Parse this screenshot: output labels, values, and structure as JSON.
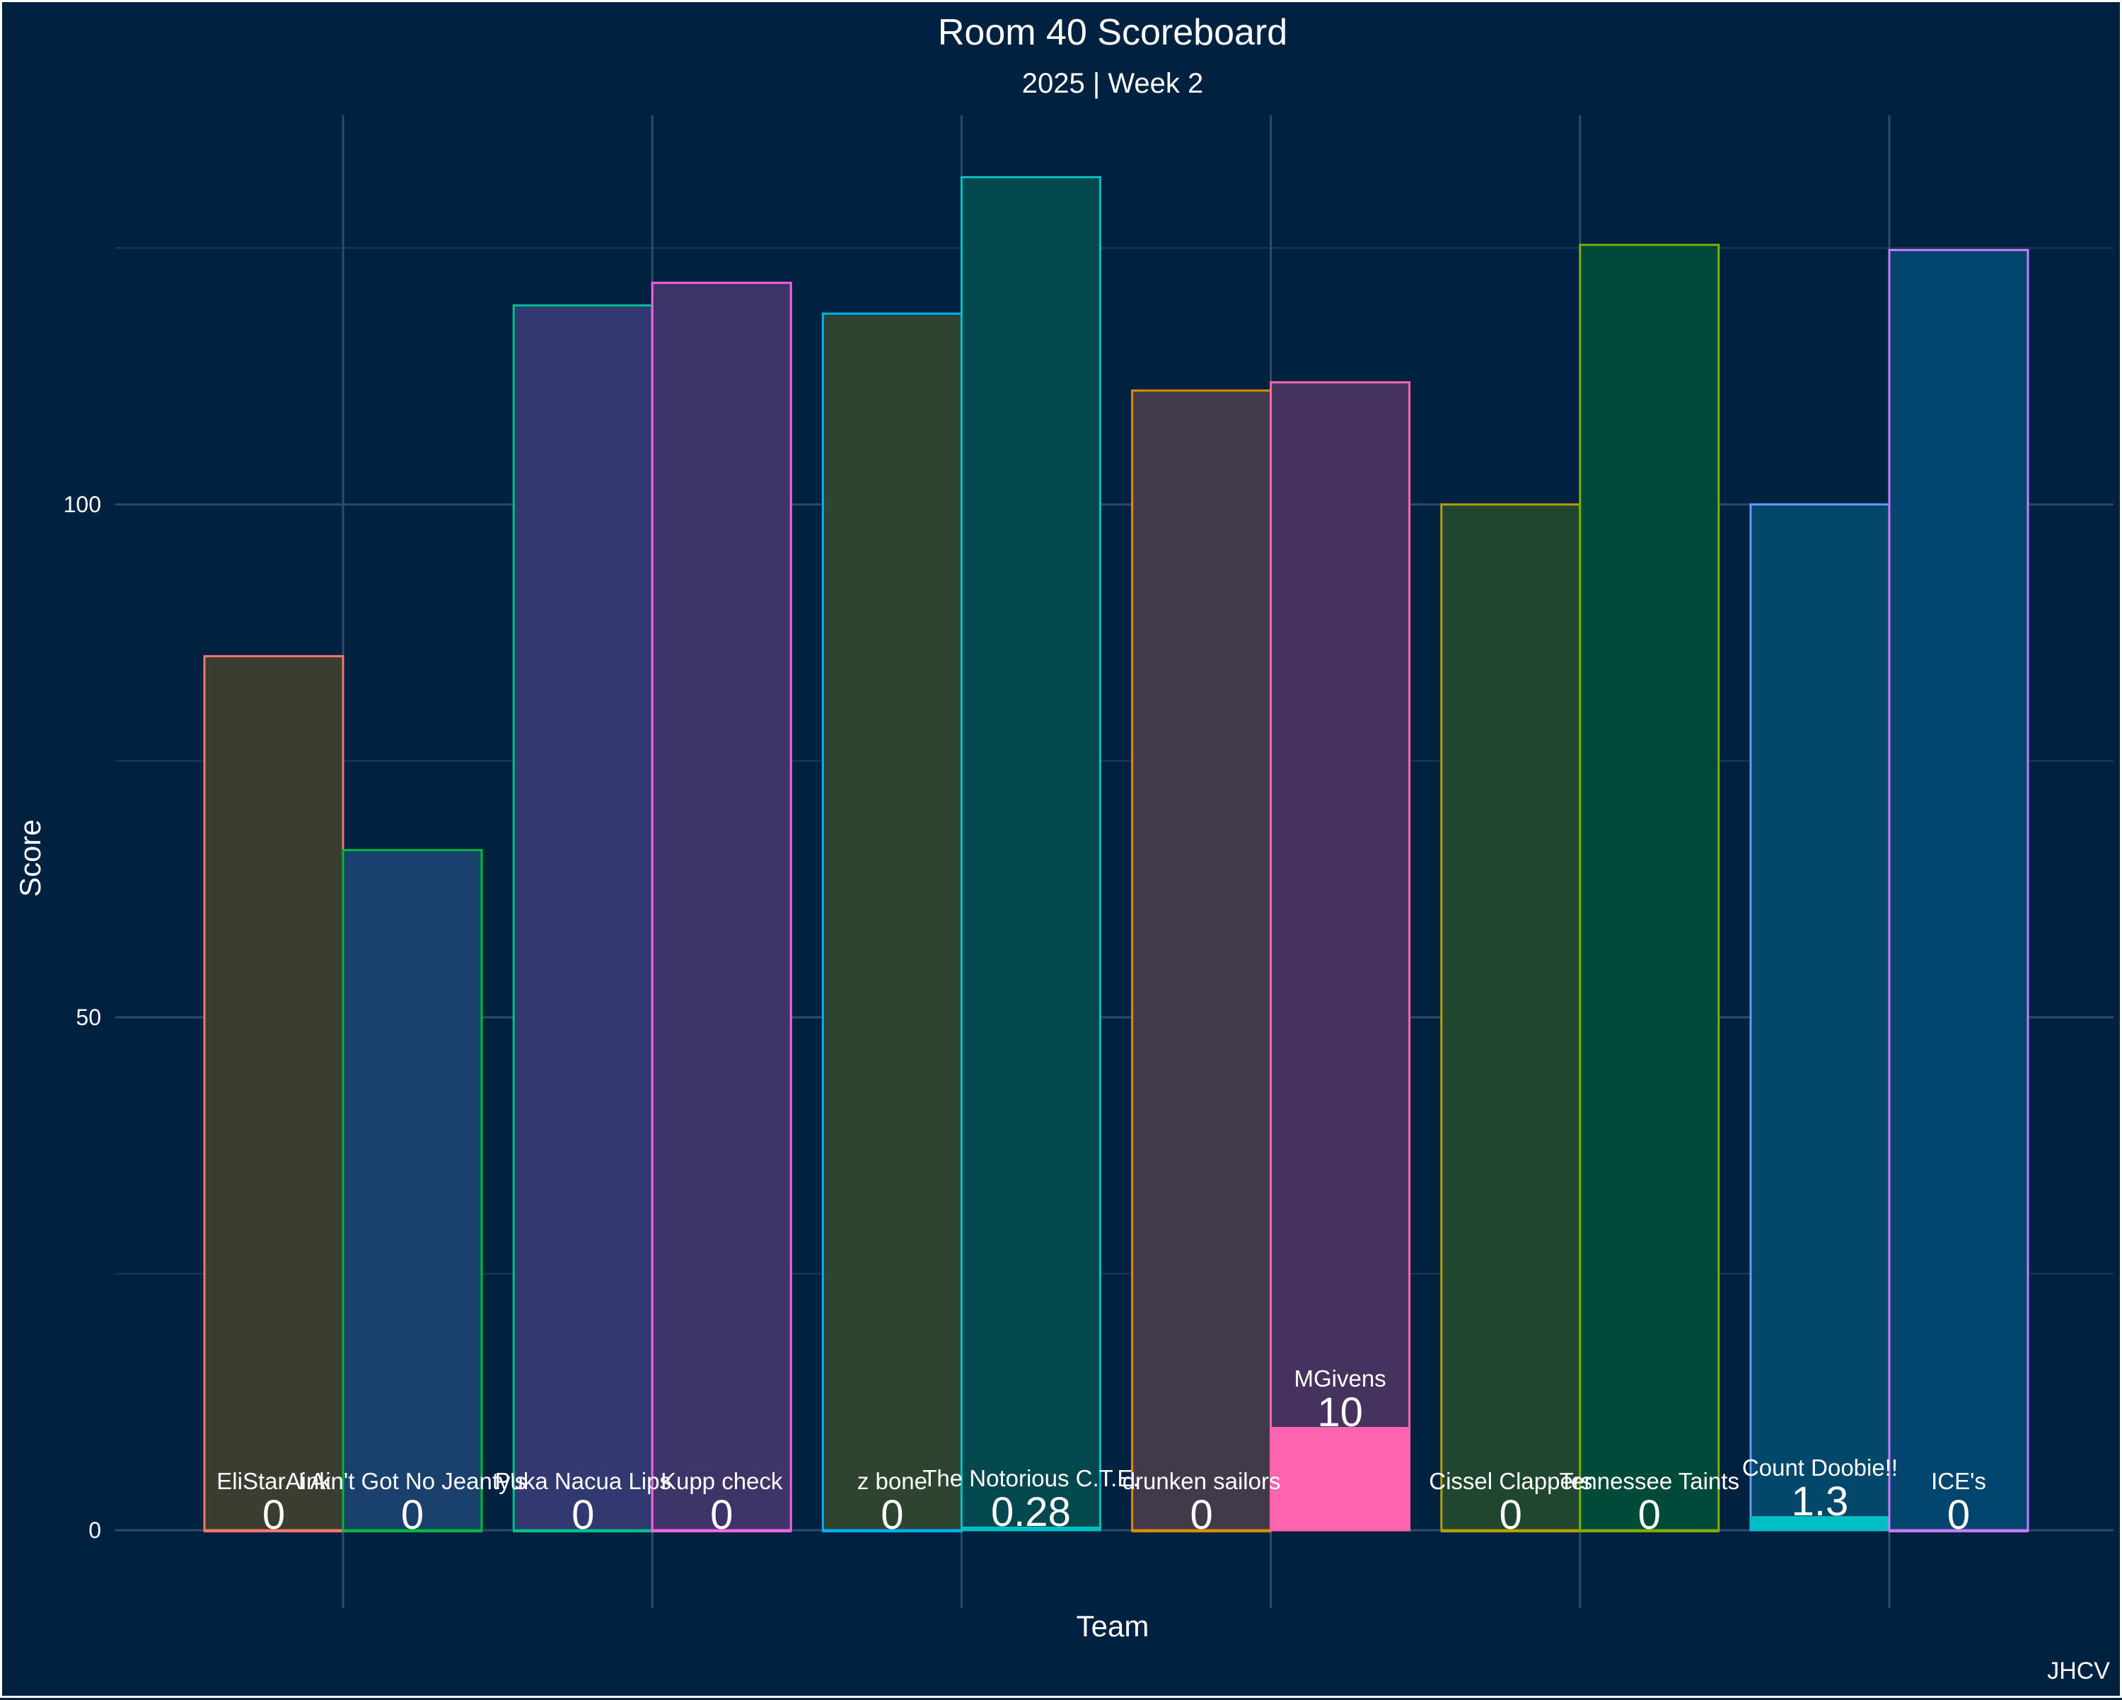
{
  "chart_data": {
    "type": "bar",
    "title": "Room 40 Scoreboard",
    "subtitle": "2025 | Week 2",
    "xlabel": "Team",
    "ylabel": "Score",
    "caption": "JHCV",
    "ylim": [
      -6,
      137
    ],
    "yticks": [
      0,
      50,
      100
    ],
    "grid": true,
    "legend": "none",
    "categories": [
      "EliStarAink",
      "I Ain't Got No Jeanty's",
      "Puka Nacua Lips",
      "Kupp check",
      "z bone",
      "The Notorious C.T.E.",
      "drunken sailors",
      "MGivens",
      "Cissel Clappers",
      "Tennessee Taints",
      "Count Doobie!!",
      "ICE's"
    ],
    "series": [
      {
        "name": "projected",
        "values": [
          85.2,
          66.3,
          119.4,
          121.6,
          118.6,
          131.9,
          111.1,
          111.9,
          100.0,
          125.3,
          100.0,
          124.8
        ]
      },
      {
        "name": "score",
        "values": [
          0,
          0,
          0,
          0,
          0,
          0.28,
          0,
          10,
          0,
          0,
          1.3,
          0
        ]
      }
    ],
    "score_labels": [
      "0",
      "0",
      "0",
      "0",
      "0",
      "0.28",
      "0",
      "10",
      "0",
      "0",
      "1.3",
      "0"
    ],
    "colors": [
      "#F8766D",
      "#00BA38",
      "#00C08B",
      "#F564E3",
      "#00B0F6",
      "#00BFC4",
      "#DE8C00",
      "#FF64B0",
      "#B79F00",
      "#7CAE00",
      "#619CFF",
      "#C77CFF"
    ],
    "fills": [
      "#3A3E30",
      "#1A416E",
      "#323870",
      "#3E3468",
      "#2F4430",
      "#03484F",
      "#423A4A",
      "#45325E",
      "#214630",
      "#004A3A",
      "#03486A",
      "#02456E"
    ],
    "score_fill_colors": [
      "#F8766D",
      "#00BA38",
      "#00C08B",
      "#F564E3",
      "#00B0F6",
      "#00BFC4",
      "#DE8C00",
      "#FF64B0",
      "#B79F00",
      "#7CAE00",
      "#00BFC4",
      "#C77CFF"
    ]
  }
}
